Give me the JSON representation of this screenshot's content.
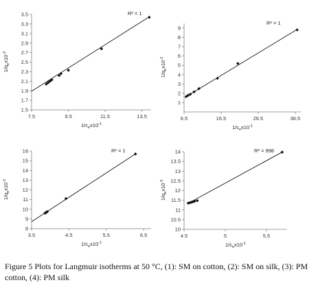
{
  "caption": "Figure 5 Plots for Langmuir isotherms at 50 °C, (1): SM on cotton, (2): SM on silk, (3): PM cotton, (4): PM silk",
  "chart_data": [
    {
      "type": "scatter",
      "ylabel_main": "1/q",
      "ylabel_sub": "e",
      "ylabel_rest": "x10",
      "ylabel_exp": "-2",
      "xlabel_main": "1/c",
      "xlabel_sub": "e",
      "xlabel_rest": "x10",
      "xlabel_exp": "-1",
      "r2_label": "R² = 1",
      "xlim": [
        7.5,
        14.0
      ],
      "ylim": [
        1.5,
        3.5
      ],
      "xticks": [
        7.5,
        9.5,
        11.5,
        13.5
      ],
      "xtick_labels": [
        "7.5",
        "9.5",
        "11.5",
        "13.5"
      ],
      "yticks": [
        1.5,
        1.7,
        1.9,
        2.1,
        2.3,
        2.5,
        2.7,
        2.9,
        3.1,
        3.3,
        3.5
      ],
      "ytick_labels": [
        "1.5",
        "1.7",
        "1.9",
        "2.1",
        "2.3",
        "2.5",
        "2.7",
        "2.9",
        "3.1",
        "3.3",
        "3.5"
      ],
      "points": [
        [
          8.3,
          2.04
        ],
        [
          8.4,
          2.07
        ],
        [
          8.5,
          2.1
        ],
        [
          8.6,
          2.13
        ],
        [
          9.0,
          2.22
        ],
        [
          9.1,
          2.26
        ],
        [
          9.5,
          2.33
        ],
        [
          11.3,
          2.78
        ],
        [
          13.9,
          3.44
        ]
      ],
      "line": [
        [
          7.5,
          1.89
        ],
        [
          13.9,
          3.45
        ]
      ]
    },
    {
      "type": "scatter",
      "ylabel_main": "1/q",
      "ylabel_sub": "e",
      "ylabel_rest": "x10",
      "ylabel_exp": "-2",
      "xlabel_main": "1/c",
      "xlabel_sub": "e",
      "xlabel_rest": "x10",
      "xlabel_exp": "-1",
      "r2_label": "R² = 1",
      "xlim": [
        6.5,
        38.0
      ],
      "ylim": [
        0,
        9.5
      ],
      "xticks": [
        6.5,
        16.5,
        26.5,
        36.5
      ],
      "xtick_labels": [
        "6.5",
        "16.5",
        "26.5",
        "36.5"
      ],
      "yticks": [
        1,
        2,
        3,
        4,
        5,
        6,
        7,
        8,
        9
      ],
      "ytick_labels": [
        "1",
        "2",
        "3",
        "4",
        "5",
        "6",
        "7",
        "8",
        "9"
      ],
      "points": [
        [
          7.1,
          1.65
        ],
        [
          7.6,
          1.78
        ],
        [
          8.2,
          1.9
        ],
        [
          9.2,
          2.15
        ],
        [
          10.5,
          2.5
        ],
        [
          15.5,
          3.6
        ],
        [
          21.0,
          5.2
        ],
        [
          37.0,
          8.8
        ]
      ],
      "line": [
        [
          6.7,
          1.55
        ],
        [
          37.0,
          8.85
        ]
      ]
    },
    {
      "type": "scatter",
      "ylabel_main": "1/q",
      "ylabel_sub": "e",
      "ylabel_rest": "x10",
      "ylabel_exp": "-2",
      "xlabel_main": "1/c",
      "xlabel_sub": "e",
      "xlabel_rest": "x10",
      "xlabel_exp": "-1",
      "r2_label": "R² = 1",
      "xlim": [
        3.5,
        6.7
      ],
      "ylim": [
        8,
        16
      ],
      "xticks": [
        3.5,
        4.5,
        5.5,
        6.5
      ],
      "xtick_labels": [
        "3.5",
        "4.5",
        "5.5",
        "6.5"
      ],
      "yticks": [
        8,
        9,
        10,
        11,
        12,
        13,
        14,
        15,
        16
      ],
      "ytick_labels": [
        "8",
        "9",
        "10",
        "11",
        "12",
        "13",
        "14",
        "15",
        "16"
      ],
      "points": [
        [
          3.86,
          9.6
        ],
        [
          3.88,
          9.65
        ],
        [
          3.9,
          9.7
        ],
        [
          3.92,
          9.75
        ],
        [
          4.42,
          11.1
        ],
        [
          6.28,
          15.7
        ]
      ],
      "line": [
        [
          3.5,
          8.72
        ],
        [
          6.28,
          15.7
        ]
      ]
    },
    {
      "type": "scatter",
      "ylabel_main": "1/q",
      "ylabel_sub": "e",
      "ylabel_rest": "x10",
      "ylabel_exp": "-3",
      "xlabel_main": "1/c",
      "xlabel_sub": "e",
      "xlabel_rest": "x10",
      "xlabel_exp": "-1",
      "r2_label": "R² = 998",
      "xlim": [
        4.5,
        5.75
      ],
      "ylim": [
        10,
        14
      ],
      "xticks": [
        4.5,
        5,
        5.5
      ],
      "xtick_labels": [
        "4.5",
        "5",
        "5.5"
      ],
      "yticks": [
        10,
        10.5,
        11,
        11.5,
        12,
        12.5,
        13,
        13.5,
        14
      ],
      "ytick_labels": [
        "10",
        "10.5",
        "11",
        "11.5",
        "12",
        "12.5",
        "13",
        "13.5",
        "14"
      ],
      "points": [
        [
          4.55,
          11.35
        ],
        [
          4.57,
          11.37
        ],
        [
          4.59,
          11.4
        ],
        [
          4.61,
          11.42
        ],
        [
          4.63,
          11.45
        ],
        [
          4.66,
          11.48
        ],
        [
          5.69,
          13.98
        ]
      ],
      "line": [
        [
          4.55,
          11.34
        ],
        [
          5.69,
          13.98
        ]
      ]
    }
  ]
}
